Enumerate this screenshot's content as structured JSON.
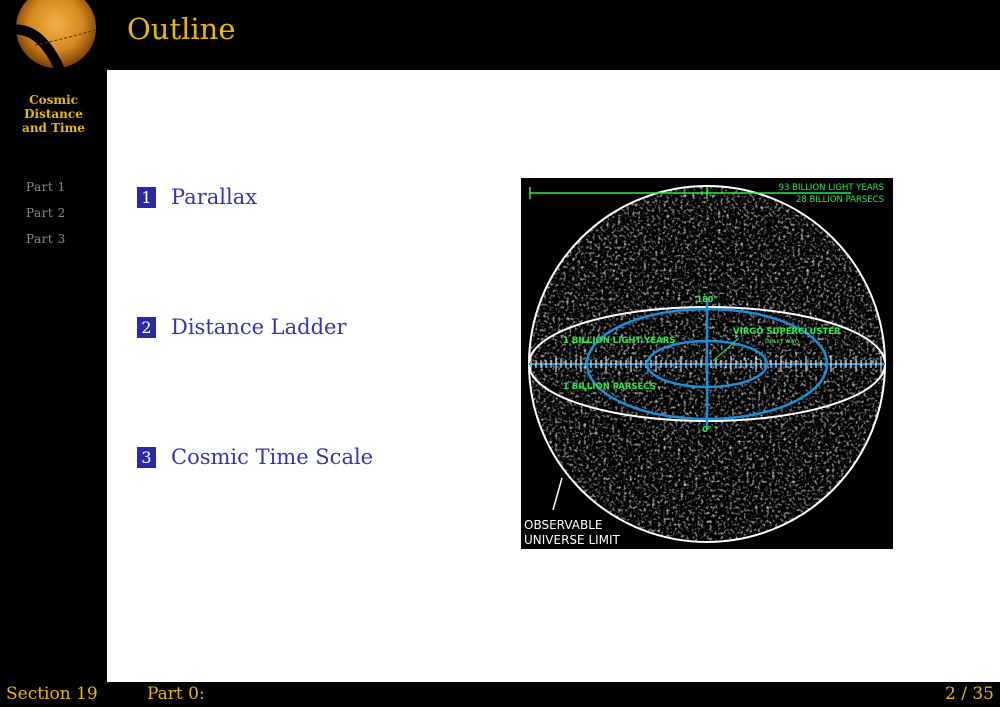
{
  "slide": {
    "title": "Outline"
  },
  "sidebar": {
    "title": "Cosmic\nDistance\nand Time",
    "nav": [
      "Part 1",
      "Part 2",
      "Part 3"
    ]
  },
  "outline": [
    {
      "number": "1",
      "label": "Parallax"
    },
    {
      "number": "2",
      "label": "Distance Ladder"
    },
    {
      "number": "3",
      "label": "Cosmic Time Scale"
    }
  ],
  "figure": {
    "scale_top_line1": "93 BILLION LIGHT YEARS",
    "scale_top_line2": "28 BILLION PARSECS",
    "label_180": "180°",
    "label_0": "0°",
    "label_ly": "1 BILLION LIGHT YEARS",
    "label_pc": "1 BILLION PARSECS",
    "label_virgo": "VIRGO SUPERCLUSTER",
    "label_milky": "(MILKY WAY)",
    "label_limit_line1": "OBSERVABLE",
    "label_limit_line2": "UNIVERSE LIMIT",
    "colors": {
      "green": "#22ee44",
      "blue": "#1a8fd8",
      "white": "#ffffff"
    }
  },
  "footer": {
    "section": "Section 19",
    "part": "Part 0:",
    "page": "2 / 35"
  },
  "colors": {
    "accent": "#e8b800",
    "link": "#3535b8",
    "box": "#2a2aa8"
  }
}
